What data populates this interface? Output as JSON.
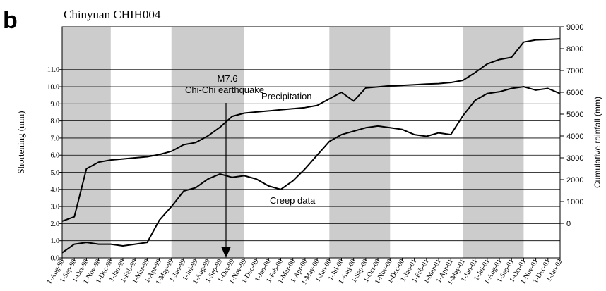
{
  "chart_data": {
    "type": "line",
    "panel": "b",
    "title": "Chinyuan CHIH004",
    "y_label": "Shortening (mm)",
    "y2_label": "Cumulative rainfall (mm)",
    "categories": [
      "1-Aug-98",
      "1-Sep-98",
      "1-Oct-98",
      "1-Nov-98",
      "1-Dec-98",
      "1-Jan-99",
      "1-Feb-99",
      "1-Mar-99",
      "1-Apr-99",
      "1-May-99",
      "1-Jun-99",
      "1-Jul-99",
      "1-Aug-99",
      "1-Sep-99",
      "1-Oct-99",
      "1-Nov-99",
      "1-Dec-99",
      "1-Jan-00",
      "1-Feb-00",
      "1-Mar-00",
      "1-Apr-00",
      "1-May-00",
      "1-Jun-00",
      "1-Jul-00",
      "1-Aug-00",
      "1-Sep-00",
      "1-Oct-00",
      "1-Nov-00",
      "1-Dec-00",
      "1-Jan-01",
      "1-Feb-01",
      "1-Mar-01",
      "1-Apr-01",
      "1-May-01",
      "1-Jun-01",
      "1-Jul-01",
      "1-Aug-01",
      "1-Sep-01",
      "1-Oct-01",
      "1-Nov-01",
      "1-Dec-01",
      "1-Jan-02"
    ],
    "series": [
      {
        "name": "Creep data",
        "color": "#000000",
        "values": [
          0.3,
          0.8,
          0.9,
          0.8,
          0.8,
          0.7,
          0.8,
          0.9,
          2.2,
          3.0,
          3.9,
          4.1,
          4.6,
          4.9,
          4.7,
          4.8,
          4.6,
          4.2,
          4.0,
          4.5,
          5.2,
          6.0,
          6.8,
          7.2,
          7.4,
          7.6,
          7.7,
          7.6,
          7.5,
          7.2,
          7.1,
          7.3,
          7.2,
          8.3,
          9.2,
          9.6,
          9.7,
          9.9,
          10.0,
          9.8,
          9.9,
          9.6
        ]
      },
      {
        "name": "Precipitation",
        "color": "#000000",
        "axis": "y2",
        "values": [
          100,
          300,
          2500,
          2800,
          2900,
          2950,
          3000,
          3050,
          3150,
          3300,
          3600,
          3700,
          4000,
          4400,
          4900,
          5050,
          5100,
          5150,
          5200,
          5250,
          5300,
          5400,
          5700,
          6000,
          5600,
          6200,
          6250,
          6300,
          6320,
          6350,
          6380,
          6400,
          6450,
          6550,
          6900,
          7300,
          7500,
          7600,
          8300,
          8400,
          8420,
          8450
        ]
      }
    ],
    "shaded_periods": [
      [
        "1-Aug-98",
        "1-Dec-98"
      ],
      [
        "1-May-99",
        "1-Nov-99"
      ],
      [
        "1-Jun-00",
        "1-Nov-00"
      ],
      [
        "1-May-01",
        "1-Oct-01"
      ]
    ],
    "annotations": {
      "event_magnitude": "M7.6",
      "event_name": "Chi-Chi earthquake"
    },
    "ylim": [
      0,
      13.5
    ],
    "yticks": [
      {
        "value": 0,
        "label": "0.0"
      },
      {
        "value": 1,
        "label": "1.0"
      },
      {
        "value": 2,
        "label": "2.0"
      },
      {
        "value": 3,
        "label": "3.0"
      },
      {
        "value": 4,
        "label": "4.0"
      },
      {
        "value": 5,
        "label": "5.0"
      },
      {
        "value": 6,
        "label": "6.0"
      },
      {
        "value": 7,
        "label": "7.0"
      },
      {
        "value": 8,
        "label": "8.0"
      },
      {
        "value": 9,
        "label": "9.0"
      },
      {
        "value": 10,
        "label": "10.0"
      },
      {
        "value": 11,
        "label": "11.0"
      }
    ],
    "y2lim": [
      -1580,
      9000
    ],
    "y2ticks": [
      0,
      1000,
      2000,
      3000,
      4000,
      5000,
      6000,
      7000,
      8000,
      9000
    ],
    "grid": true
  }
}
